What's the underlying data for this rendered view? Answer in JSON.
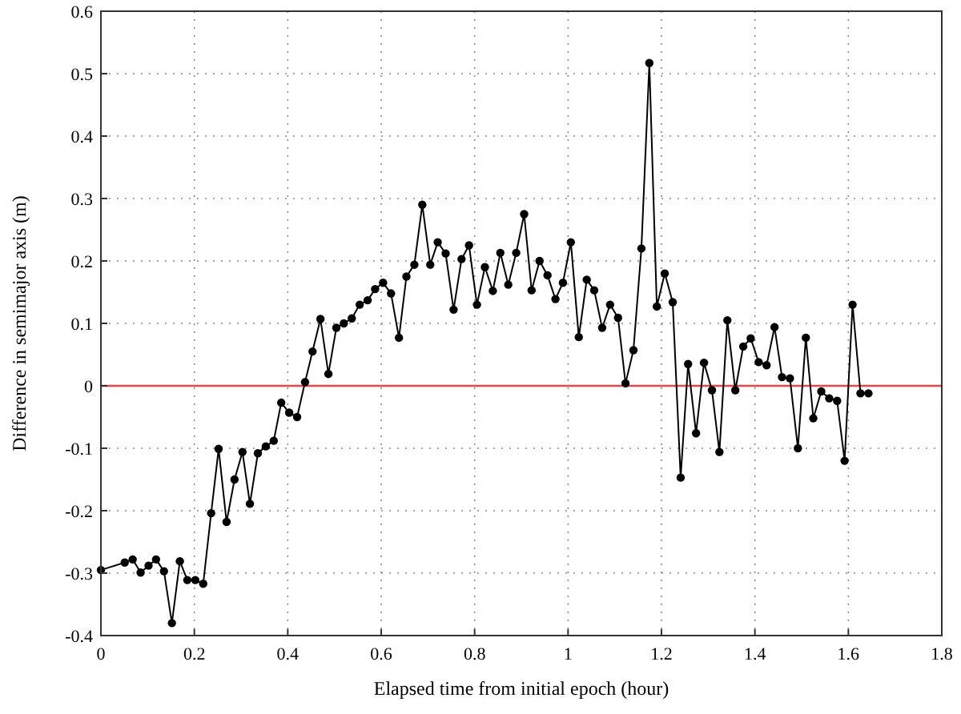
{
  "chart_data": {
    "type": "line",
    "xlabel": "Elapsed time from initial epoch (hour)",
    "ylabel": "Difference in semimajor axis (m)",
    "x": [
      0,
      0.051,
      0.068,
      0.085,
      0.102,
      0.118,
      0.135,
      0.152,
      0.169,
      0.185,
      0.202,
      0.219,
      0.236,
      0.252,
      0.269,
      0.286,
      0.303,
      0.319,
      0.336,
      0.353,
      0.37,
      0.386,
      0.403,
      0.42,
      0.437,
      0.453,
      0.47,
      0.487,
      0.504,
      0.52,
      0.537,
      0.554,
      0.571,
      0.587,
      0.604,
      0.621,
      0.638,
      0.654,
      0.671,
      0.688,
      0.705,
      0.721,
      0.738,
      0.755,
      0.772,
      0.788,
      0.805,
      0.822,
      0.839,
      0.855,
      0.872,
      0.889,
      0.906,
      0.922,
      0.939,
      0.956,
      0.973,
      0.989,
      1.006,
      1.023,
      1.04,
      1.056,
      1.073,
      1.09,
      1.107,
      1.123,
      1.14,
      1.157,
      1.174,
      1.19,
      1.207,
      1.224,
      1.241,
      1.257,
      1.274,
      1.291,
      1.308,
      1.324,
      1.341,
      1.358,
      1.375,
      1.391,
      1.408,
      1.425,
      1.442,
      1.458,
      1.475,
      1.492,
      1.509,
      1.525,
      1.542,
      1.559,
      1.576,
      1.592,
      1.609,
      1.626,
      1.643
    ],
    "series": [
      {
        "color": "#000000",
        "values": [
          -0.295,
          -0.283,
          -0.278,
          -0.299,
          -0.288,
          -0.278,
          -0.297,
          -0.38,
          -0.281,
          -0.311,
          -0.311,
          -0.317,
          -0.204,
          -0.101,
          -0.218,
          -0.15,
          -0.106,
          -0.189,
          -0.108,
          -0.097,
          -0.088,
          -0.027,
          -0.043,
          -0.05,
          0.006,
          0.055,
          0.107,
          0.019,
          0.093,
          0.1,
          0.108,
          0.13,
          0.137,
          0.155,
          0.165,
          0.148,
          0.077,
          0.175,
          0.194,
          0.29,
          0.194,
          0.23,
          0.212,
          0.122,
          0.203,
          0.225,
          0.13,
          0.19,
          0.152,
          0.213,
          0.162,
          0.213,
          0.275,
          0.153,
          0.2,
          0.177,
          0.139,
          0.165,
          0.23,
          0.078,
          0.17,
          0.153,
          0.093,
          0.13,
          0.109,
          0.004,
          0.057,
          0.22,
          0.517,
          0.127,
          0.18,
          0.134,
          -0.147,
          0.035,
          -0.076,
          0.037,
          -0.007,
          -0.106,
          0.105,
          -0.007,
          0.063,
          0.076,
          0.038,
          0.033,
          0.094,
          0.014,
          0.012,
          -0.1,
          0.077,
          -0.052,
          -0.009,
          -0.02,
          -0.024,
          -0.12,
          0.13,
          -0.012,
          -0.012
        ]
      }
    ],
    "xlim": [
      0,
      1.8
    ],
    "xticks": [
      0,
      0.2,
      0.4,
      0.6,
      0.8,
      1,
      1.2,
      1.4,
      1.6,
      1.8
    ],
    "ylim": [
      -0.4,
      0.6
    ],
    "yticks": [
      -0.4,
      -0.3,
      -0.2,
      -0.1,
      0,
      0.1,
      0.2,
      0.3,
      0.4,
      0.5,
      0.6
    ],
    "ref_lines": [
      {
        "axis": "y",
        "value": 0,
        "color": "#e8474a"
      }
    ],
    "grid": true,
    "marker": "circle",
    "line_style": "solid"
  }
}
